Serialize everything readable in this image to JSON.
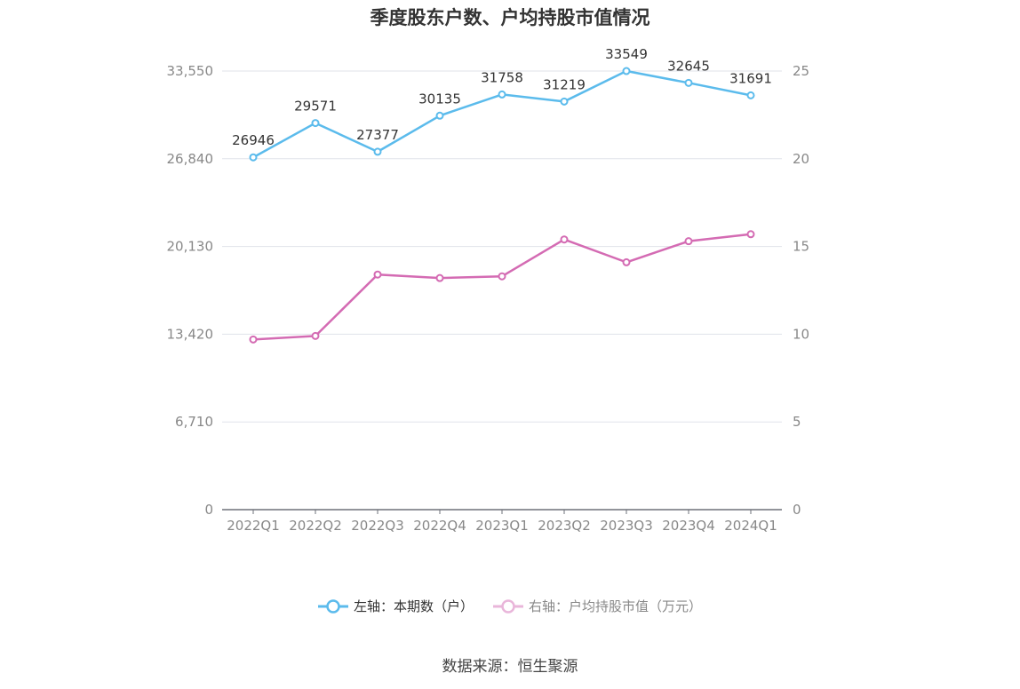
{
  "title": "季度股东户数、户均持股市值情况",
  "source": "数据来源：恒生聚源",
  "colors": {
    "left_series": "#5bbbec",
    "right_series": "#d46bb3",
    "grid": "#e0e3ea",
    "axis_text": "#888888"
  },
  "chart_data": {
    "type": "line",
    "categories": [
      "2022Q1",
      "2022Q2",
      "2022Q3",
      "2022Q4",
      "2023Q1",
      "2023Q2",
      "2023Q3",
      "2023Q4",
      "2024Q1"
    ],
    "y_left": {
      "ticks": [
        "0",
        "6,710",
        "13,420",
        "20,130",
        "26,840",
        "33,550"
      ],
      "ylim": [
        0,
        33550
      ]
    },
    "y_right": {
      "ticks": [
        "0",
        "5",
        "10",
        "15",
        "20",
        "25"
      ],
      "ylim": [
        0,
        25
      ]
    },
    "series": [
      {
        "name": "左轴：本期数（户）",
        "axis": "left",
        "values": [
          26946,
          29571,
          27377,
          30135,
          31758,
          31219,
          33549,
          32645,
          31691
        ],
        "labels": [
          "26946",
          "29571",
          "27377",
          "30135",
          "31758",
          "31219",
          "33549",
          "32645",
          "31691"
        ]
      },
      {
        "name": "右轴：户均持股市值（万元）",
        "axis": "right",
        "values": [
          9.7,
          9.9,
          13.4,
          13.2,
          13.3,
          15.4,
          14.1,
          15.3,
          15.7
        ]
      }
    ],
    "grid": true,
    "legend_position": "bottom"
  }
}
